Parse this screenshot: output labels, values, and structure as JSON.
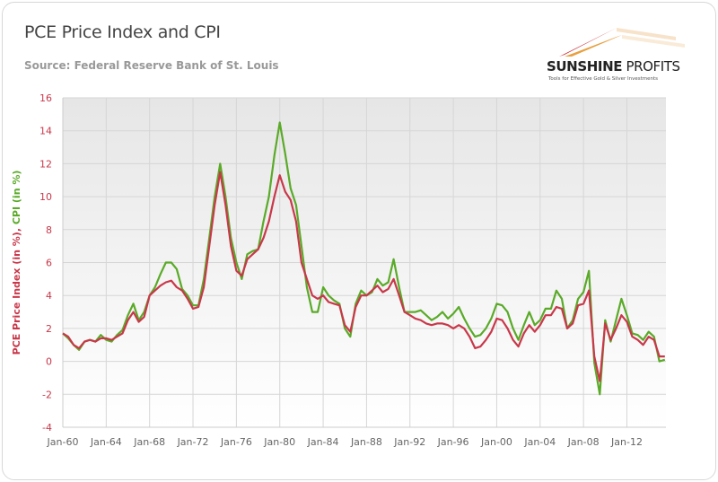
{
  "header": {
    "title": "PCE Price Index and CPI",
    "subtitle": "Source: Federal Reserve Bank of St. Louis"
  },
  "logo": {
    "name_bold": "SUNSHINE",
    "name_light": " PROFITS",
    "tagline": "Tools for Effective Gold & Silver Investments"
  },
  "chart_data": {
    "type": "line",
    "title": "PCE Price Index and CPI",
    "ylabel_parts": [
      {
        "text": "PCE Price Index (in %)",
        "color": "#c8384a"
      },
      {
        "text": ", ",
        "color": "#c8384a"
      },
      {
        "text": "CPI (in %)",
        "color": "#5aaa28"
      }
    ],
    "ylim": [
      -4,
      16
    ],
    "yticks": [
      16,
      14,
      12,
      10,
      8,
      6,
      4,
      2,
      0,
      -2,
      -4
    ],
    "xlim": [
      1960,
      2015.6
    ],
    "xticks": [
      {
        "x": 1960,
        "label": "Jan-60"
      },
      {
        "x": 1964,
        "label": "Jan-64"
      },
      {
        "x": 1968,
        "label": "Jan-68"
      },
      {
        "x": 1972,
        "label": "Jan-72"
      },
      {
        "x": 1976,
        "label": "Jan-76"
      },
      {
        "x": 1980,
        "label": "Jan-80"
      },
      {
        "x": 1984,
        "label": "Jan-84"
      },
      {
        "x": 1988,
        "label": "Jan-88"
      },
      {
        "x": 1992,
        "label": "Jan-92"
      },
      {
        "x": 1996,
        "label": "Jan-96"
      },
      {
        "x": 2000,
        "label": "Jan-00"
      },
      {
        "x": 2004,
        "label": "Jan-04"
      },
      {
        "x": 2008,
        "label": "Jan-08"
      },
      {
        "x": 2012,
        "label": "Jan-12"
      }
    ],
    "grid": true,
    "x_start": 1960,
    "x_step": 0.5,
    "series": [
      {
        "id": "cpi",
        "color": "#5aaa28",
        "values": [
          1.7,
          1.4,
          1.0,
          0.7,
          1.2,
          1.3,
          1.2,
          1.6,
          1.3,
          1.2,
          1.6,
          1.9,
          2.8,
          3.5,
          2.5,
          3.0,
          4.0,
          4.5,
          5.3,
          6.0,
          6.0,
          5.6,
          4.4,
          4.0,
          3.4,
          3.4,
          5.0,
          7.5,
          10.0,
          12.0,
          10.0,
          7.5,
          6.0,
          5.0,
          6.5,
          6.7,
          6.8,
          8.5,
          10.0,
          12.5,
          14.5,
          12.6,
          10.5,
          9.5,
          7.0,
          4.5,
          3.0,
          3.0,
          4.5,
          4.0,
          3.7,
          3.5,
          2.0,
          1.5,
          3.5,
          4.3,
          4.0,
          4.2,
          5.0,
          4.6,
          4.8,
          6.2,
          4.5,
          3.0,
          3.0,
          3.0,
          3.1,
          2.8,
          2.5,
          2.7,
          3.0,
          2.6,
          2.9,
          3.3,
          2.6,
          2.0,
          1.5,
          1.6,
          2.0,
          2.6,
          3.5,
          3.4,
          3.0,
          2.0,
          1.3,
          2.2,
          3.0,
          2.2,
          2.5,
          3.2,
          3.2,
          4.3,
          3.8,
          2.0,
          2.5,
          3.8,
          4.2,
          5.5,
          -0.1,
          -2.0,
          2.5,
          1.2,
          2.5,
          3.8,
          2.8,
          1.7,
          1.6,
          1.3,
          1.8,
          1.5,
          0.0,
          0.1
        ]
      },
      {
        "id": "pce",
        "color": "#c8384a",
        "values": [
          1.7,
          1.5,
          1.0,
          0.8,
          1.2,
          1.3,
          1.2,
          1.4,
          1.4,
          1.3,
          1.5,
          1.7,
          2.5,
          3.0,
          2.4,
          2.7,
          4.0,
          4.3,
          4.6,
          4.8,
          4.9,
          4.5,
          4.3,
          3.8,
          3.2,
          3.3,
          4.5,
          7.0,
          9.5,
          11.5,
          9.5,
          7.0,
          5.5,
          5.2,
          6.2,
          6.5,
          6.8,
          7.5,
          8.5,
          10.0,
          11.3,
          10.3,
          9.8,
          8.5,
          6.0,
          5.0,
          4.0,
          3.8,
          4.0,
          3.6,
          3.5,
          3.4,
          2.2,
          1.8,
          3.3,
          4.0,
          4.0,
          4.3,
          4.6,
          4.2,
          4.4,
          5.0,
          4.0,
          3.0,
          2.8,
          2.6,
          2.5,
          2.3,
          2.2,
          2.3,
          2.3,
          2.2,
          2.0,
          2.2,
          2.0,
          1.5,
          0.8,
          0.9,
          1.3,
          1.8,
          2.6,
          2.5,
          2.0,
          1.3,
          0.9,
          1.7,
          2.2,
          1.8,
          2.2,
          2.8,
          2.8,
          3.3,
          3.2,
          2.0,
          2.3,
          3.4,
          3.5,
          4.3,
          0.3,
          -1.2,
          2.3,
          1.3,
          2.0,
          2.8,
          2.4,
          1.5,
          1.3,
          1.0,
          1.5,
          1.3,
          0.3,
          0.3
        ]
      }
    ]
  }
}
